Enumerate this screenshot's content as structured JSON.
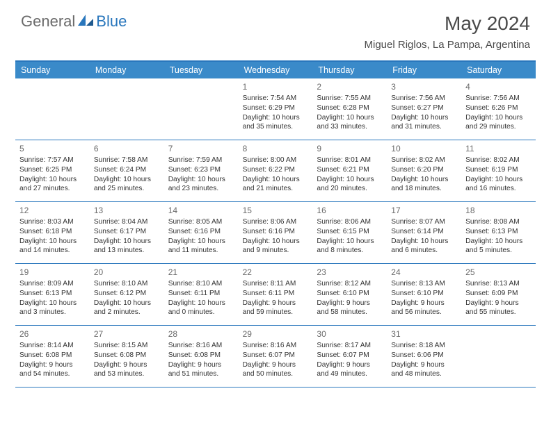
{
  "logo": {
    "general": "General",
    "blue": "Blue"
  },
  "title": "May 2024",
  "location": "Miguel Riglos, La Pampa, Argentina",
  "colors": {
    "header_bg": "#3a8ac9",
    "border": "#2876bc",
    "text": "#333333",
    "muted": "#6a6a6a",
    "white": "#ffffff"
  },
  "weekdays": [
    "Sunday",
    "Monday",
    "Tuesday",
    "Wednesday",
    "Thursday",
    "Friday",
    "Saturday"
  ],
  "weeks": [
    [
      null,
      null,
      null,
      {
        "n": "1",
        "sr": "7:54 AM",
        "ss": "6:29 PM",
        "dl": "10 hours and 35 minutes."
      },
      {
        "n": "2",
        "sr": "7:55 AM",
        "ss": "6:28 PM",
        "dl": "10 hours and 33 minutes."
      },
      {
        "n": "3",
        "sr": "7:56 AM",
        "ss": "6:27 PM",
        "dl": "10 hours and 31 minutes."
      },
      {
        "n": "4",
        "sr": "7:56 AM",
        "ss": "6:26 PM",
        "dl": "10 hours and 29 minutes."
      }
    ],
    [
      {
        "n": "5",
        "sr": "7:57 AM",
        "ss": "6:25 PM",
        "dl": "10 hours and 27 minutes."
      },
      {
        "n": "6",
        "sr": "7:58 AM",
        "ss": "6:24 PM",
        "dl": "10 hours and 25 minutes."
      },
      {
        "n": "7",
        "sr": "7:59 AM",
        "ss": "6:23 PM",
        "dl": "10 hours and 23 minutes."
      },
      {
        "n": "8",
        "sr": "8:00 AM",
        "ss": "6:22 PM",
        "dl": "10 hours and 21 minutes."
      },
      {
        "n": "9",
        "sr": "8:01 AM",
        "ss": "6:21 PM",
        "dl": "10 hours and 20 minutes."
      },
      {
        "n": "10",
        "sr": "8:02 AM",
        "ss": "6:20 PM",
        "dl": "10 hours and 18 minutes."
      },
      {
        "n": "11",
        "sr": "8:02 AM",
        "ss": "6:19 PM",
        "dl": "10 hours and 16 minutes."
      }
    ],
    [
      {
        "n": "12",
        "sr": "8:03 AM",
        "ss": "6:18 PM",
        "dl": "10 hours and 14 minutes."
      },
      {
        "n": "13",
        "sr": "8:04 AM",
        "ss": "6:17 PM",
        "dl": "10 hours and 13 minutes."
      },
      {
        "n": "14",
        "sr": "8:05 AM",
        "ss": "6:16 PM",
        "dl": "10 hours and 11 minutes."
      },
      {
        "n": "15",
        "sr": "8:06 AM",
        "ss": "6:16 PM",
        "dl": "10 hours and 9 minutes."
      },
      {
        "n": "16",
        "sr": "8:06 AM",
        "ss": "6:15 PM",
        "dl": "10 hours and 8 minutes."
      },
      {
        "n": "17",
        "sr": "8:07 AM",
        "ss": "6:14 PM",
        "dl": "10 hours and 6 minutes."
      },
      {
        "n": "18",
        "sr": "8:08 AM",
        "ss": "6:13 PM",
        "dl": "10 hours and 5 minutes."
      }
    ],
    [
      {
        "n": "19",
        "sr": "8:09 AM",
        "ss": "6:13 PM",
        "dl": "10 hours and 3 minutes."
      },
      {
        "n": "20",
        "sr": "8:10 AM",
        "ss": "6:12 PM",
        "dl": "10 hours and 2 minutes."
      },
      {
        "n": "21",
        "sr": "8:10 AM",
        "ss": "6:11 PM",
        "dl": "10 hours and 0 minutes."
      },
      {
        "n": "22",
        "sr": "8:11 AM",
        "ss": "6:11 PM",
        "dl": "9 hours and 59 minutes."
      },
      {
        "n": "23",
        "sr": "8:12 AM",
        "ss": "6:10 PM",
        "dl": "9 hours and 58 minutes."
      },
      {
        "n": "24",
        "sr": "8:13 AM",
        "ss": "6:10 PM",
        "dl": "9 hours and 56 minutes."
      },
      {
        "n": "25",
        "sr": "8:13 AM",
        "ss": "6:09 PM",
        "dl": "9 hours and 55 minutes."
      }
    ],
    [
      {
        "n": "26",
        "sr": "8:14 AM",
        "ss": "6:08 PM",
        "dl": "9 hours and 54 minutes."
      },
      {
        "n": "27",
        "sr": "8:15 AM",
        "ss": "6:08 PM",
        "dl": "9 hours and 53 minutes."
      },
      {
        "n": "28",
        "sr": "8:16 AM",
        "ss": "6:08 PM",
        "dl": "9 hours and 51 minutes."
      },
      {
        "n": "29",
        "sr": "8:16 AM",
        "ss": "6:07 PM",
        "dl": "9 hours and 50 minutes."
      },
      {
        "n": "30",
        "sr": "8:17 AM",
        "ss": "6:07 PM",
        "dl": "9 hours and 49 minutes."
      },
      {
        "n": "31",
        "sr": "8:18 AM",
        "ss": "6:06 PM",
        "dl": "9 hours and 48 minutes."
      },
      null
    ]
  ],
  "labels": {
    "sunrise": "Sunrise:",
    "sunset": "Sunset:",
    "daylight": "Daylight:"
  }
}
